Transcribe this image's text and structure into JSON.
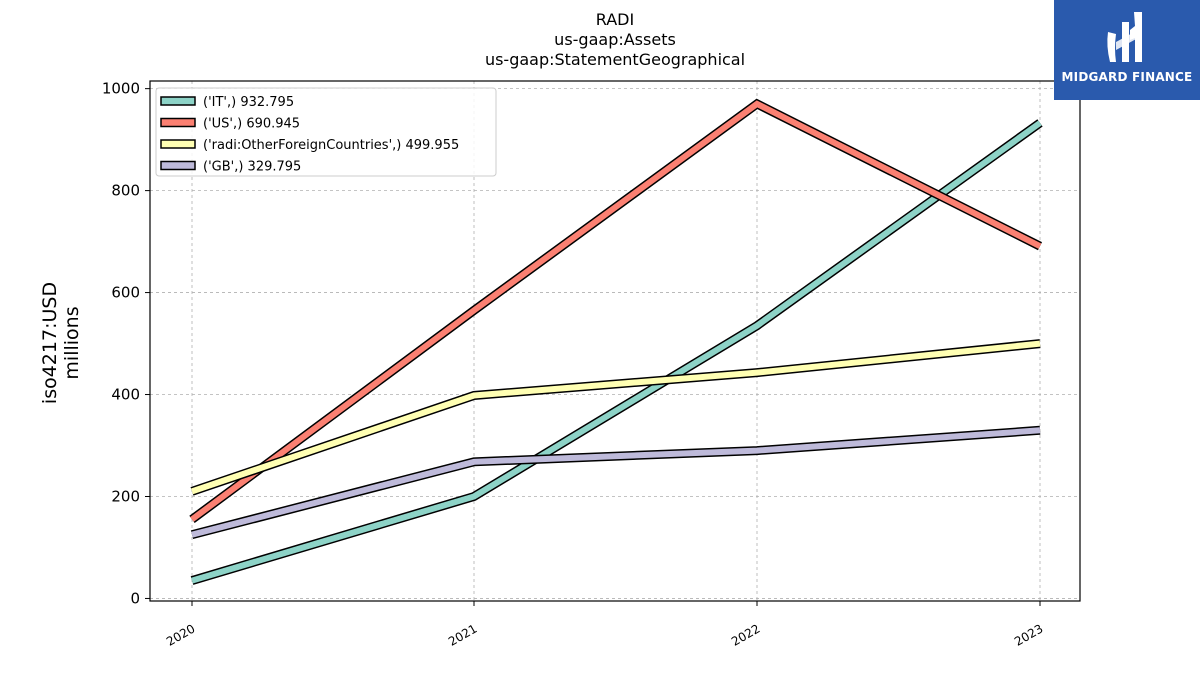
{
  "chart_data": {
    "type": "line",
    "title_lines": [
      "RADI",
      "us-gaap:Assets",
      "us-gaap:StatementGeographical"
    ],
    "ylabel": "iso4217:USD\nmillions",
    "xlabel": "",
    "categories": [
      "2020",
      "2021",
      "2022",
      "2023"
    ],
    "ylim": [
      -5,
      1015
    ],
    "yticks": [
      0,
      200,
      400,
      600,
      800,
      1000
    ],
    "grid": true,
    "legend_position": "top-left",
    "series": [
      {
        "name": "('IT',) 932.795",
        "color": "#8dd3c7",
        "values": [
          35,
          200,
          535,
          932.795
        ]
      },
      {
        "name": "('US',) 690.945",
        "color": "#fb8072",
        "values": [
          155,
          565,
          970,
          690.945
        ]
      },
      {
        "name": "('radi:OtherForeignCountries',) 499.955",
        "color": "#ffffb3",
        "values": [
          210,
          398,
          443,
          499.955
        ]
      },
      {
        "name": "('GB',) 329.795",
        "color": "#bebada",
        "values": [
          125,
          268,
          290,
          329.795
        ]
      }
    ]
  },
  "logo": {
    "text": "MIDGARD FINANCE"
  }
}
